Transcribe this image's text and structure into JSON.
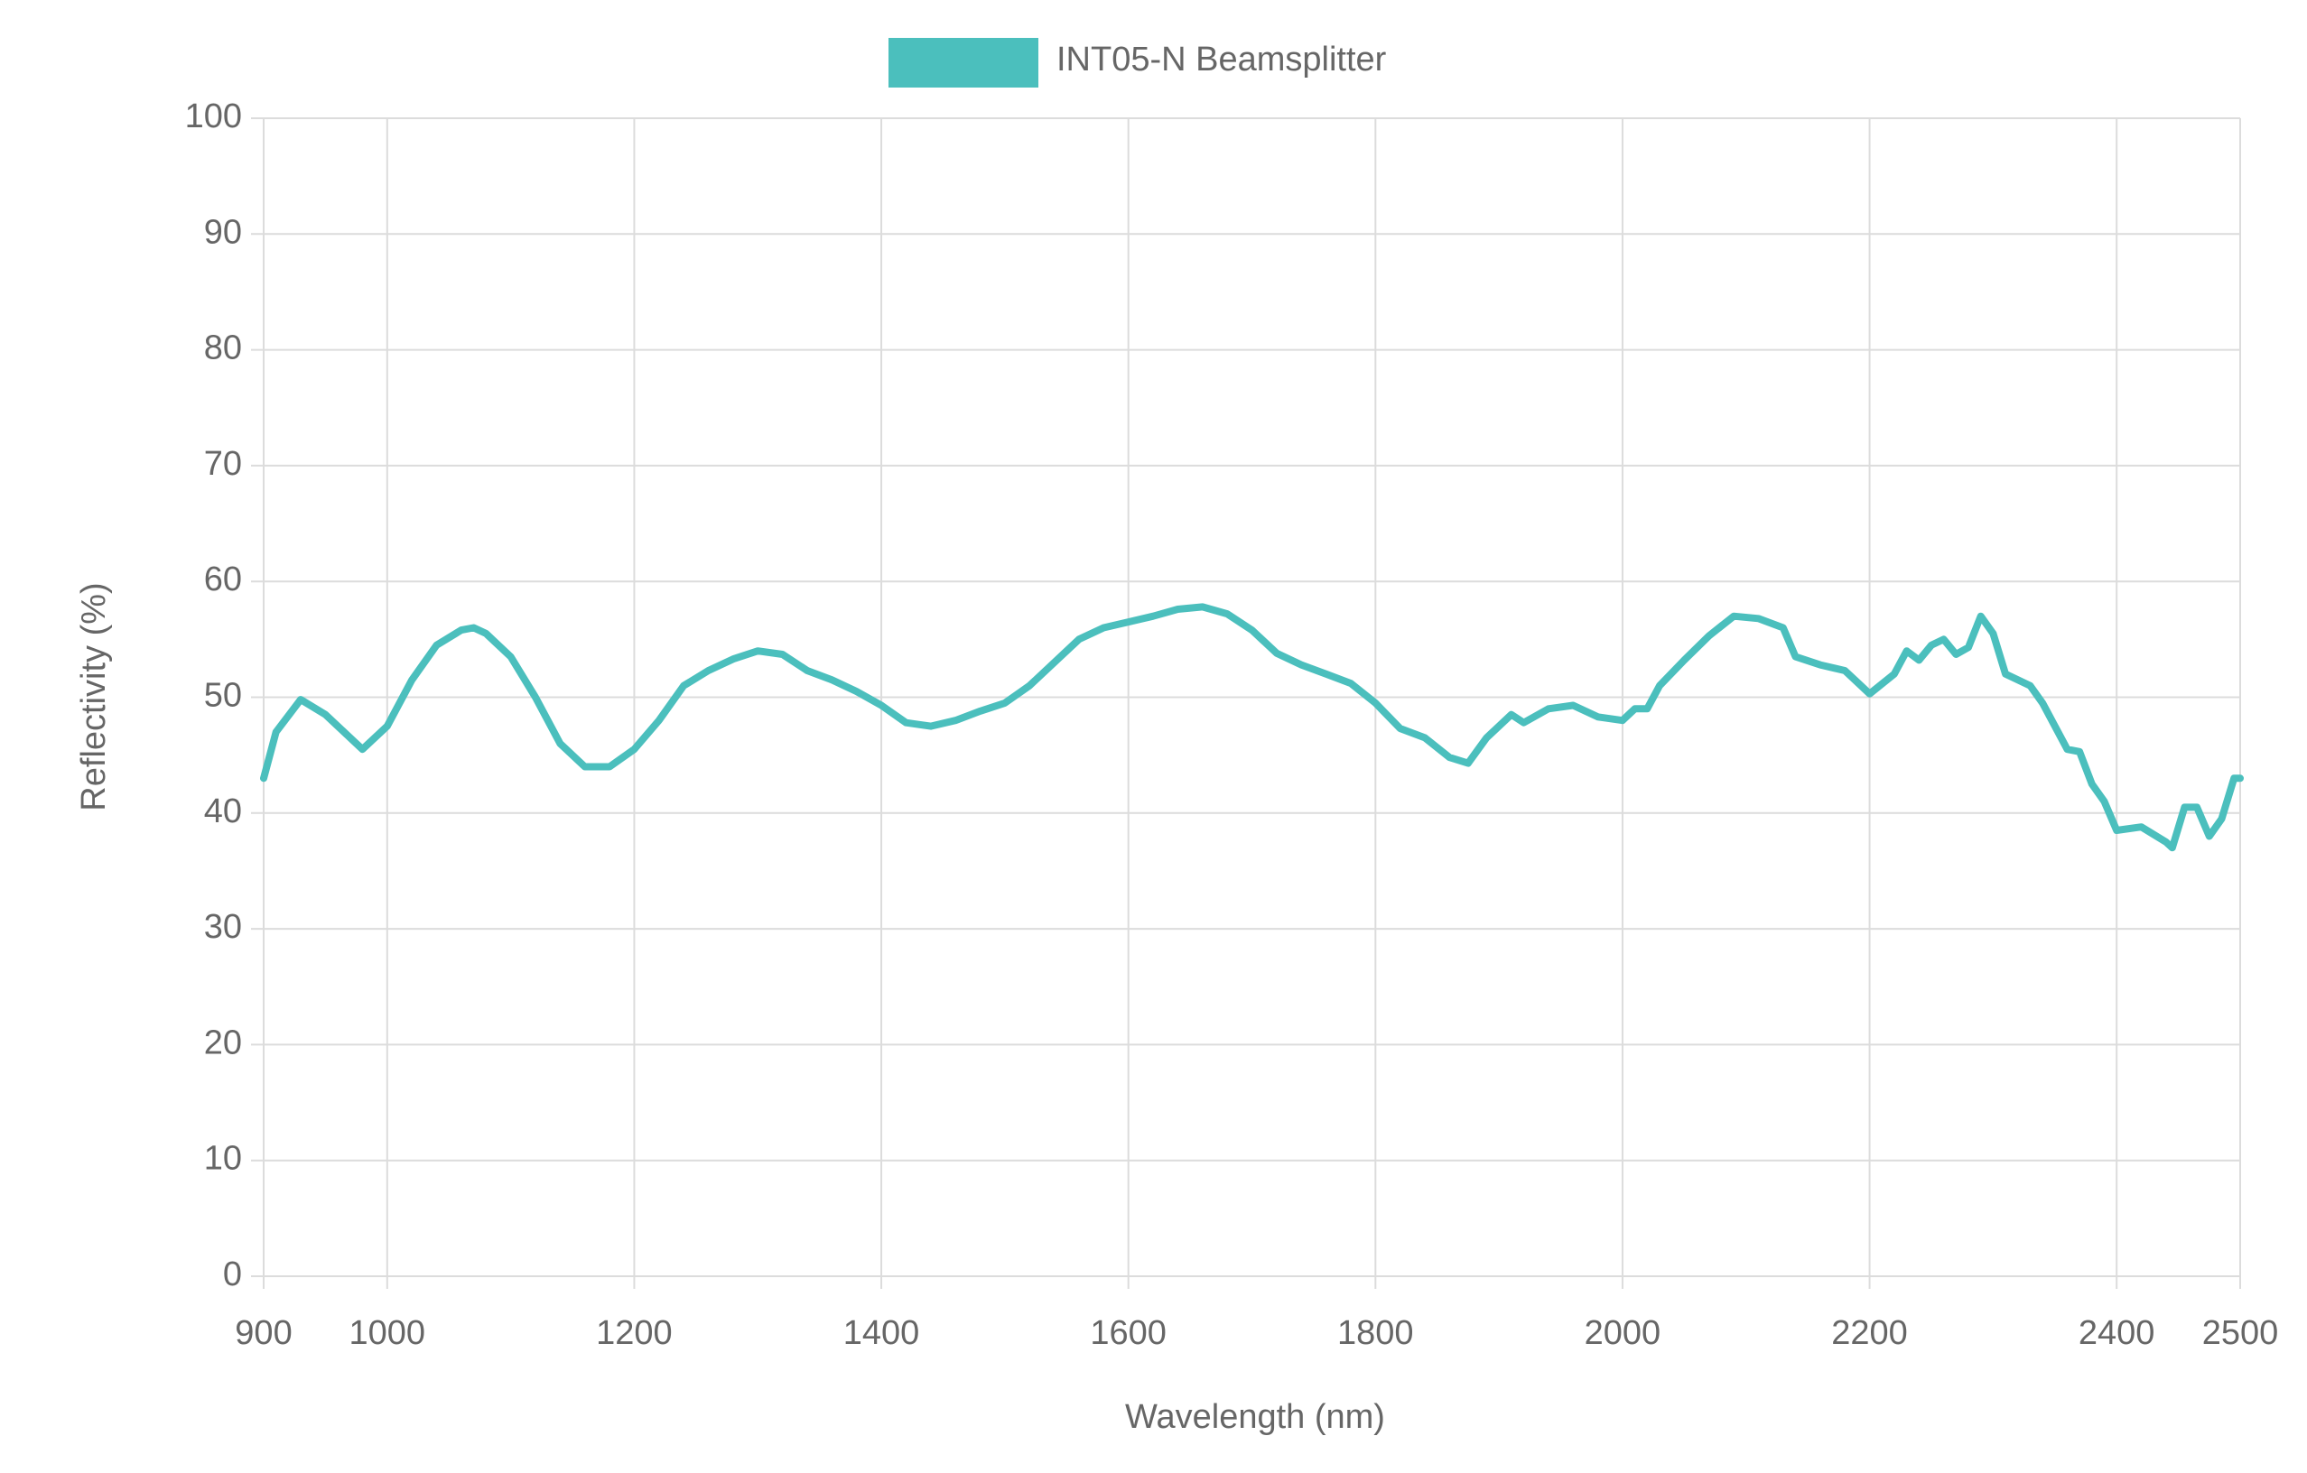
{
  "chart_data": {
    "type": "line",
    "x_label": "Wavelength (nm)",
    "y_label": "Reflectivity (%)",
    "x": [
      900,
      910,
      930,
      950,
      970,
      980,
      1000,
      1020,
      1040,
      1060,
      1070,
      1080,
      1100,
      1120,
      1140,
      1160,
      1180,
      1200,
      1220,
      1240,
      1260,
      1280,
      1300,
      1320,
      1340,
      1360,
      1380,
      1400,
      1420,
      1440,
      1460,
      1480,
      1500,
      1520,
      1540,
      1560,
      1580,
      1600,
      1620,
      1640,
      1660,
      1680,
      1700,
      1720,
      1740,
      1760,
      1780,
      1800,
      1820,
      1840,
      1860,
      1875,
      1890,
      1910,
      1920,
      1940,
      1960,
      1980,
      2000,
      2010,
      2020,
      2030,
      2050,
      2070,
      2090,
      2110,
      2130,
      2140,
      2160,
      2180,
      2190,
      2200,
      2220,
      2230,
      2240,
      2250,
      2260,
      2270,
      2280,
      2290,
      2300,
      2310,
      2330,
      2340,
      2360,
      2370,
      2380,
      2390,
      2400,
      2420,
      2440,
      2445,
      2455,
      2465,
      2475,
      2485,
      2495,
      2500
    ],
    "series": [
      {
        "name": "INT05-N Beamsplitter",
        "color": "#4bbfbd",
        "values": [
          43,
          47,
          49.8,
          48.5,
          46.5,
          45.5,
          47.5,
          51.5,
          54.5,
          55.8,
          56,
          55.5,
          53.5,
          50,
          46,
          44,
          44,
          45.5,
          48,
          51,
          52.3,
          53.3,
          54,
          53.7,
          52.3,
          51.5,
          50.5,
          49.3,
          47.8,
          47.5,
          48,
          48.8,
          49.5,
          51,
          53,
          55,
          56,
          56.5,
          57,
          57.6,
          57.8,
          57.2,
          55.8,
          53.8,
          52.8,
          52,
          51.2,
          49.5,
          47.3,
          46.5,
          44.8,
          44.3,
          46.5,
          48.5,
          47.8,
          49,
          49.3,
          48.3,
          48,
          49,
          49,
          51,
          53.2,
          55.3,
          57,
          56.8,
          56,
          53.5,
          52.8,
          52.3,
          51.3,
          50.3,
          52,
          54,
          53.2,
          54.5,
          55,
          53.7,
          54.3,
          57,
          55.5,
          52,
          51,
          49.5,
          45.5,
          45.3,
          42.5,
          41,
          38.5,
          38.8,
          37.5,
          37,
          40.5,
          40.5,
          38,
          39.5,
          43,
          43
        ]
      }
    ],
    "xlim": [
      900,
      2500
    ],
    "xticks": [
      900,
      1000,
      1200,
      1400,
      1600,
      1800,
      2000,
      2200,
      2400,
      2500
    ],
    "ylim": [
      0,
      100
    ],
    "yticks": [
      0,
      10,
      20,
      30,
      40,
      50,
      60,
      70,
      80,
      90,
      100
    ],
    "grid": true,
    "legend": "top"
  }
}
